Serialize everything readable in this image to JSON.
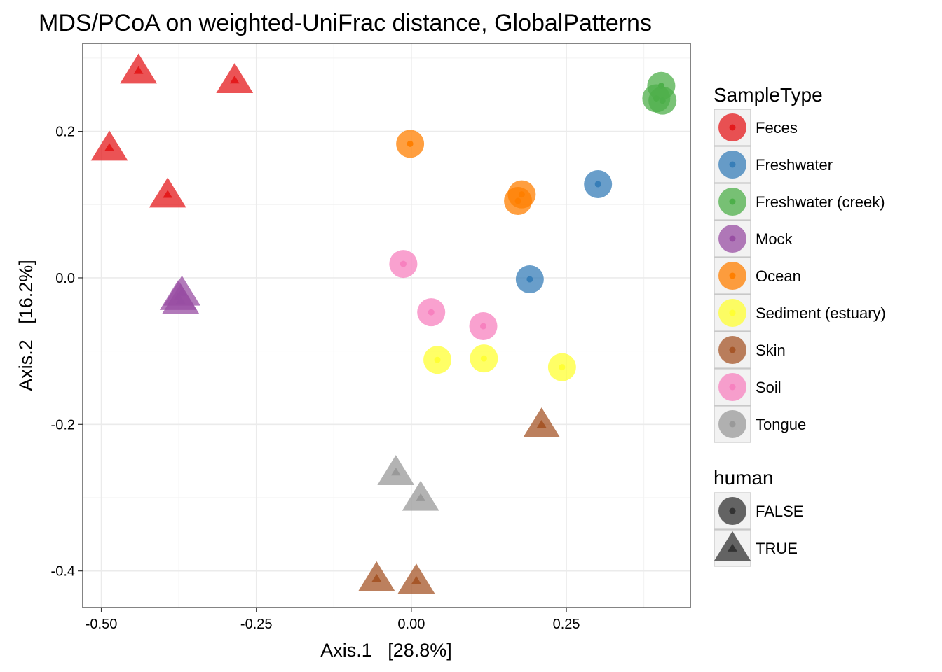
{
  "chart_data": {
    "type": "scatter",
    "title": "MDS/PCoA on weighted-UniFrac distance, GlobalPatterns",
    "xlabel": "Axis.1   [28.8%]",
    "ylabel": "Axis.2   [16.2%]",
    "xlim": [
      -0.53,
      0.45
    ],
    "ylim": [
      -0.45,
      0.32
    ],
    "xticks": [
      -0.5,
      -0.25,
      0.0,
      0.25
    ],
    "xtick_labels": [
      "-0.50",
      "-0.25",
      "0.00",
      "0.25"
    ],
    "yticks": [
      -0.4,
      -0.2,
      0.0,
      0.2
    ],
    "ytick_labels": [
      "-0.4",
      "-0.2",
      "0.0",
      "0.2"
    ],
    "grid": true,
    "legend_placement": "right",
    "color_legend": {
      "title": "SampleType",
      "entries": [
        {
          "label": "Feces",
          "color": "#E41A1C"
        },
        {
          "label": "Freshwater",
          "color": "#377EB8"
        },
        {
          "label": "Freshwater (creek)",
          "color": "#4DAF4A"
        },
        {
          "label": "Mock",
          "color": "#984EA3"
        },
        {
          "label": "Ocean",
          "color": "#FF7F00"
        },
        {
          "label": "Sediment (estuary)",
          "color": "#FFFF33"
        },
        {
          "label": "Skin",
          "color": "#A65628"
        },
        {
          "label": "Soil",
          "color": "#F781BF"
        },
        {
          "label": "Tongue",
          "color": "#999999"
        }
      ]
    },
    "shape_legend": {
      "title": "human",
      "entries": [
        {
          "label": "FALSE",
          "shape": "circle"
        },
        {
          "label": "TRUE",
          "shape": "triangle"
        }
      ]
    },
    "points": [
      {
        "x": -0.44,
        "y": 0.283,
        "type": "Feces",
        "human": true
      },
      {
        "x": -0.285,
        "y": 0.27,
        "type": "Feces",
        "human": true
      },
      {
        "x": -0.487,
        "y": 0.178,
        "type": "Feces",
        "human": true
      },
      {
        "x": -0.393,
        "y": 0.114,
        "type": "Feces",
        "human": true
      },
      {
        "x": -0.37,
        "y": -0.02,
        "type": "Mock",
        "human": true
      },
      {
        "x": -0.376,
        "y": -0.026,
        "type": "Mock",
        "human": true
      },
      {
        "x": -0.372,
        "y": -0.031,
        "type": "Mock",
        "human": true
      },
      {
        "x": 0.403,
        "y": 0.262,
        "type": "Freshwater (creek)",
        "human": false
      },
      {
        "x": 0.395,
        "y": 0.245,
        "type": "Freshwater (creek)",
        "human": false
      },
      {
        "x": 0.405,
        "y": 0.242,
        "type": "Freshwater (creek)",
        "human": false
      },
      {
        "x": -0.002,
        "y": 0.183,
        "type": "Ocean",
        "human": false
      },
      {
        "x": 0.178,
        "y": 0.114,
        "type": "Ocean",
        "human": false
      },
      {
        "x": 0.172,
        "y": 0.105,
        "type": "Ocean",
        "human": false
      },
      {
        "x": 0.301,
        "y": 0.128,
        "type": "Freshwater",
        "human": false
      },
      {
        "x": 0.191,
        "y": -0.002,
        "type": "Freshwater",
        "human": false
      },
      {
        "x": -0.013,
        "y": 0.019,
        "type": "Soil",
        "human": false
      },
      {
        "x": 0.032,
        "y": -0.047,
        "type": "Soil",
        "human": false
      },
      {
        "x": 0.116,
        "y": -0.066,
        "type": "Soil",
        "human": false
      },
      {
        "x": 0.042,
        "y": -0.112,
        "type": "Sediment (estuary)",
        "human": false
      },
      {
        "x": 0.117,
        "y": -0.11,
        "type": "Sediment (estuary)",
        "human": false
      },
      {
        "x": 0.243,
        "y": -0.122,
        "type": "Sediment (estuary)",
        "human": false
      },
      {
        "x": 0.21,
        "y": -0.2,
        "type": "Skin",
        "human": true
      },
      {
        "x": -0.025,
        "y": -0.265,
        "type": "Tongue",
        "human": true
      },
      {
        "x": 0.015,
        "y": -0.3,
        "type": "Tongue",
        "human": true
      },
      {
        "x": -0.056,
        "y": -0.41,
        "type": "Skin",
        "human": true
      },
      {
        "x": 0.008,
        "y": -0.413,
        "type": "Skin",
        "human": true
      }
    ]
  }
}
